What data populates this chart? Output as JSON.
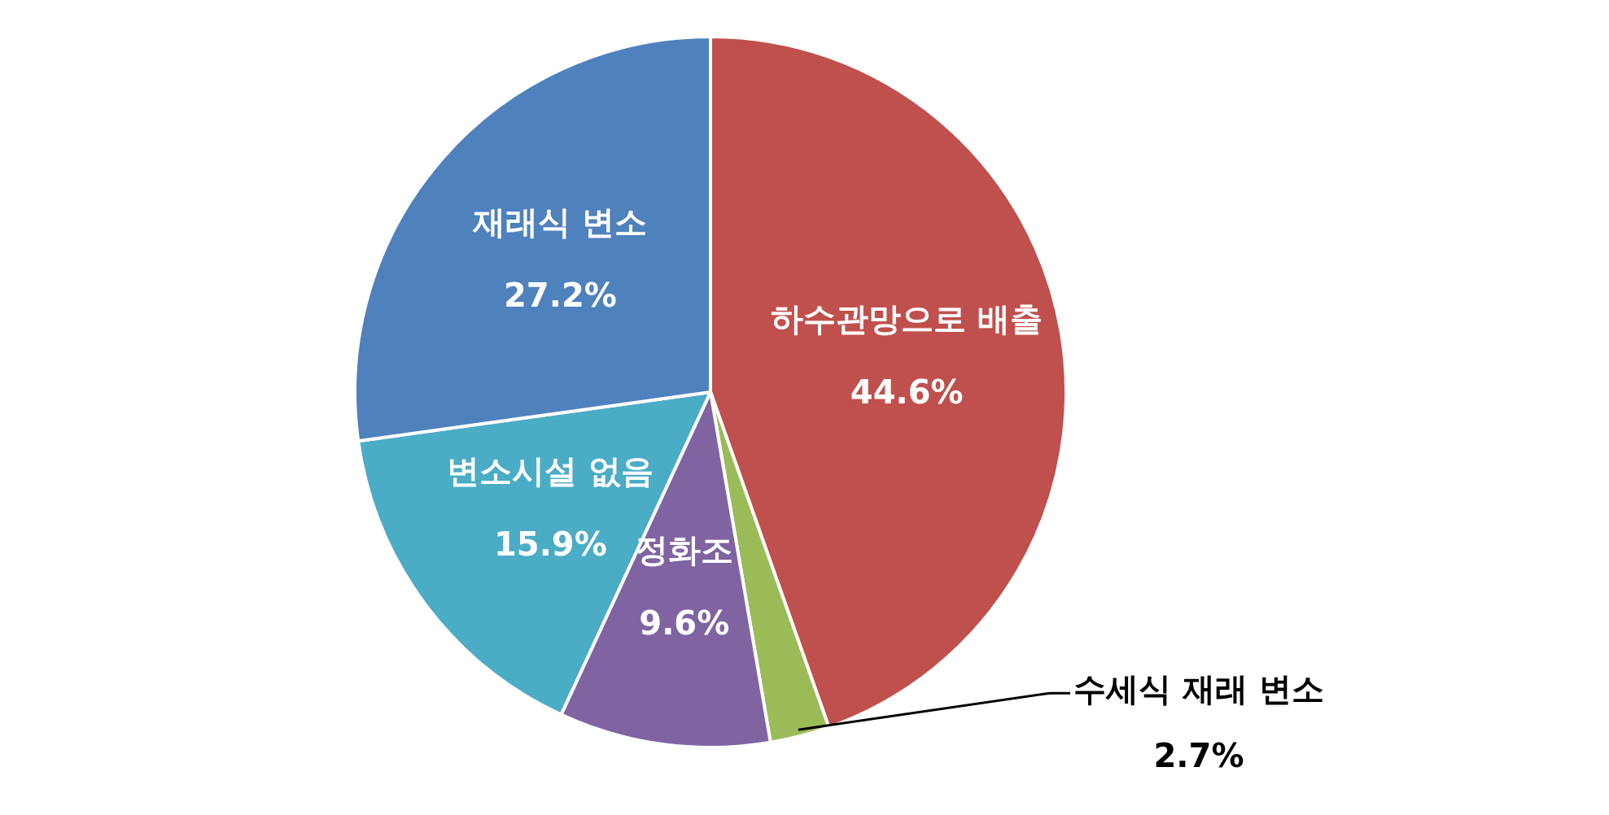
{
  "chart_data": {
    "type": "pie",
    "categories": [
      "하수관망으로 배출",
      "수세식 재래 변소",
      "정화조",
      "변소시설 없음",
      "재래식 변소"
    ],
    "values": [
      44.6,
      2.7,
      9.6,
      15.9,
      27.2
    ],
    "colors": [
      "#c0504d",
      "#9bbb59",
      "#8064a2",
      "#4bacc6",
      "#4f81bd"
    ],
    "value_labels": [
      "44.6%",
      "2.7%",
      "9.6%",
      "15.9%",
      "27.2%"
    ],
    "legend": false
  }
}
